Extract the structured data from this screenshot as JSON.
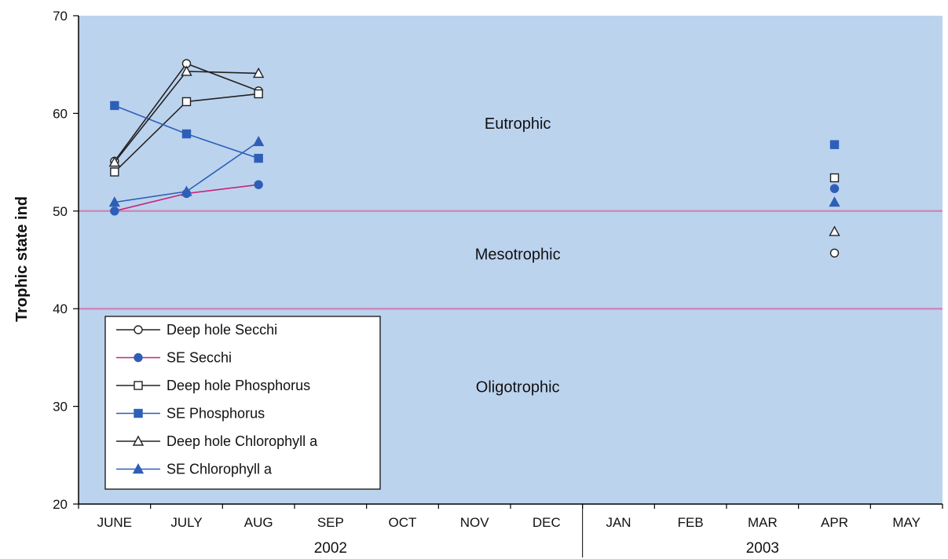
{
  "chart_data": {
    "type": "line",
    "ylabel": "Trophic state ind",
    "ylim": [
      20,
      70
    ],
    "yticks": [
      "20",
      "30",
      "40",
      "50",
      "60",
      "70"
    ],
    "categories": [
      "JUNE",
      "JULY",
      "AUG",
      "SEP",
      "OCT",
      "NOV",
      "DEC",
      "JAN",
      "FEB",
      "MAR",
      "APR",
      "MAY"
    ],
    "year_labels": [
      "2002",
      "2003"
    ],
    "zones": [
      {
        "label": "Eutrophic",
        "from": 50,
        "to": 70
      },
      {
        "label": "Mesotrophic",
        "from": 40,
        "to": 50
      },
      {
        "label": "Oligotrophic",
        "from": 20,
        "to": 40
      }
    ],
    "thresholds": [
      50,
      40
    ],
    "grid": false,
    "legend_position": "bottom-left",
    "colors": {
      "plot_background": "#bcd3ee",
      "threshold_line": "#d08ab8",
      "black": "#222222",
      "blue": "#2e5fb8",
      "magenta": "#c8247a"
    },
    "series": [
      {
        "name": "Deep hole Secchi",
        "marker": "circle-open",
        "color": "#222222",
        "x": [
          0.5,
          1.5,
          2.5
        ],
        "values": [
          55.1,
          65.1,
          62.3
        ],
        "extra_x": 10.5,
        "extra_value": 45.7
      },
      {
        "name": "SE Secchi",
        "marker": "circle-filled",
        "color": "#c8247a",
        "x": [
          0.5,
          1.5,
          2.5
        ],
        "values": [
          50.0,
          51.8,
          52.7
        ],
        "extra_x": 10.5,
        "extra_value": 52.3
      },
      {
        "name": "Deep hole Phosphorus",
        "marker": "square-open",
        "color": "#222222",
        "x": [
          0.5,
          1.5,
          2.5
        ],
        "values": [
          54.0,
          61.2,
          62.0
        ],
        "extra_x": 10.5,
        "extra_value": 53.4
      },
      {
        "name": "SE Phosphorus",
        "marker": "square-filled",
        "color": "#2e5fb8",
        "x": [
          0.5,
          1.5,
          2.5
        ],
        "values": [
          60.8,
          57.9,
          55.4
        ],
        "extra_x": 10.5,
        "extra_value": 56.8
      },
      {
        "name": "Deep hole Chlorophyll a",
        "marker": "triangle-open",
        "color": "#222222",
        "x": [
          0.5,
          1.5,
          2.5
        ],
        "values": [
          55.0,
          64.3,
          64.1
        ],
        "extra_x": 10.5,
        "extra_value": 47.9
      },
      {
        "name": "SE Chlorophyll a",
        "marker": "triangle-filled",
        "color": "#2e5fb8",
        "x": [
          0.5,
          1.5,
          2.5
        ],
        "values": [
          50.9,
          52.0,
          57.1
        ],
        "extra_x": 10.5,
        "extra_value": 50.9
      }
    ]
  }
}
